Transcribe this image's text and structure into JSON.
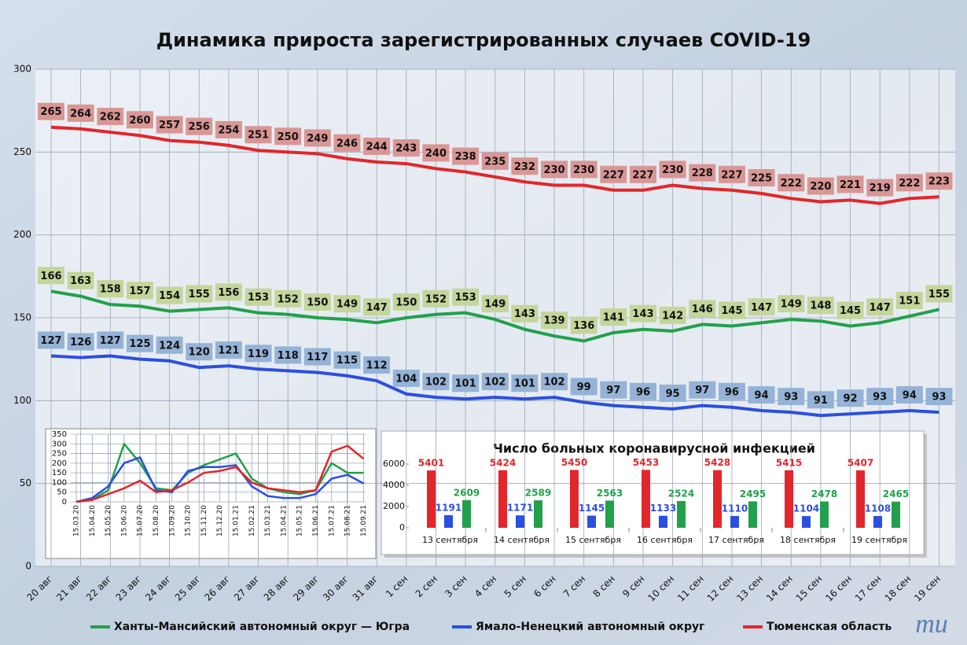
{
  "chart_data": [
    {
      "type": "line",
      "title": "Динамика прироста зарегистрированных случаев COVID-19",
      "categories": [
        "20 авг",
        "21 авг",
        "22 авг",
        "23 авг",
        "24 авг",
        "25 авг",
        "26 авг",
        "27 авг",
        "28 авг",
        "29 авг",
        "30 авг",
        "31 авг",
        "1 сен",
        "2 сен",
        "3 сен",
        "4 сен",
        "5 сен",
        "6 сен",
        "7 сен",
        "8 сен",
        "9 сен",
        "10 сен",
        "11 сен",
        "12 сен",
        "13 сен",
        "14 сен",
        "15 сен",
        "16 сен",
        "17 сен",
        "18 сен",
        "19 сен"
      ],
      "series": [
        {
          "name": "Ханты-Мансийский автономный округ — Югра",
          "color": "#22a04b",
          "label_color": "#c3d69b",
          "values": [
            166,
            163,
            158,
            157,
            154,
            155,
            156,
            153,
            152,
            150,
            149,
            147,
            150,
            152,
            153,
            149,
            143,
            139,
            136,
            141,
            143,
            142,
            146,
            145,
            147,
            149,
            148,
            145,
            147,
            151,
            155
          ]
        },
        {
          "name": "Ямало-Ненецкий автономный округ",
          "color": "#2b4fe0",
          "label_color": "#95b3d7",
          "values": [
            127,
            126,
            127,
            125,
            124,
            120,
            121,
            119,
            118,
            117,
            115,
            112,
            104,
            102,
            101,
            102,
            101,
            102,
            99,
            97,
            96,
            95,
            97,
            96,
            94,
            93,
            91,
            92,
            93,
            94,
            93
          ]
        },
        {
          "name": "Тюменская область",
          "color": "#e3262b",
          "label_color": "#d99694",
          "values": [
            265,
            264,
            262,
            260,
            257,
            256,
            254,
            251,
            250,
            249,
            246,
            244,
            243,
            240,
            238,
            235,
            232,
            230,
            230,
            227,
            227,
            230,
            228,
            227,
            225,
            222,
            220,
            221,
            219,
            222,
            223
          ]
        }
      ],
      "ylim": [
        0,
        300
      ],
      "yticks": [
        0,
        50,
        100,
        150,
        200,
        250,
        300
      ],
      "grid": true,
      "legend": "bottom"
    },
    {
      "type": "line",
      "categories": [
        "15.03.20",
        "15.04.20",
        "15.05.20",
        "15.06.20",
        "15.07.20",
        "15.08.20",
        "15.09.20",
        "15.10.20",
        "15.11.20",
        "15.12.20",
        "15.01.21",
        "15.02.21",
        "15.03.21",
        "15.04.21",
        "15.05.21",
        "15.06.21",
        "15.07.21",
        "15.08.21",
        "15.09.21"
      ],
      "series": [
        {
          "color": "#22a04b",
          "values": [
            0,
            10,
            60,
            300,
            200,
            70,
            60,
            150,
            190,
            220,
            250,
            120,
            70,
            50,
            40,
            60,
            200,
            150,
            150
          ]
        },
        {
          "color": "#2b4fe0",
          "values": [
            0,
            20,
            80,
            200,
            230,
            60,
            50,
            160,
            180,
            180,
            190,
            80,
            30,
            20,
            20,
            40,
            120,
            140,
            95
          ]
        },
        {
          "color": "#e3262b",
          "values": [
            0,
            10,
            40,
            70,
            110,
            50,
            60,
            100,
            150,
            160,
            180,
            100,
            70,
            60,
            50,
            60,
            260,
            290,
            223
          ]
        }
      ],
      "ylim": [
        0,
        350
      ],
      "yticks": [
        0,
        50,
        100,
        150,
        200,
        250,
        300,
        350
      ],
      "grid": true
    },
    {
      "type": "bar",
      "title": "Число больных коронавирусной  инфекцией",
      "categories": [
        "13 сентября",
        "14 сентября",
        "15 сентября",
        "16 сентября",
        "17 сентября",
        "18 сентября",
        "19 сентября"
      ],
      "series": [
        {
          "color": "#e3262b",
          "values": [
            5401,
            5424,
            5450,
            5453,
            5428,
            5415,
            5407
          ]
        },
        {
          "color": "#2b4fe0",
          "values": [
            1191,
            1171,
            1145,
            1133,
            1110,
            1104,
            1108
          ]
        },
        {
          "color": "#22a04b",
          "values": [
            2609,
            2589,
            2563,
            2524,
            2495,
            2478,
            2465
          ]
        }
      ],
      "ylim": [
        0,
        6000
      ],
      "yticks": [
        0,
        2000,
        4000,
        6000
      ]
    }
  ],
  "logo": "mu"
}
